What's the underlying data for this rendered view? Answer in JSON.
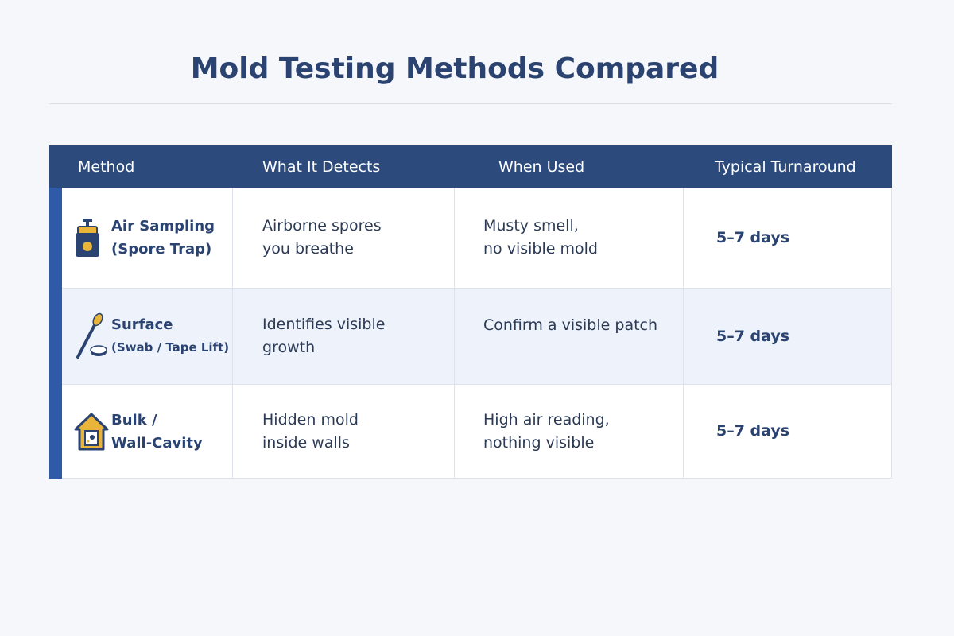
{
  "title": "Mold Testing Methods Compared",
  "table": {
    "header": [
      "Method",
      "What It Detects",
      "When Used",
      "Typical Turnaround"
    ],
    "rows": [
      [
        [
          "Air Sampling",
          "(Spore Trap)"
        ],
        [
          "Airborne spores",
          "you breathe"
        ],
        [
          "Musty smell,",
          "no visible mold"
        ],
        [
          "5–7 days"
        ]
      ],
      [
        [
          "Surface",
          "(Swab / Tape Lift)"
        ],
        [
          "Identifies visible",
          "growth"
        ],
        [
          "Confirm a visible patch"
        ],
        [
          "5–7 days"
        ]
      ],
      [
        [
          "Bulk /",
          "Wall-Cavity"
        ],
        [
          "Hidden mold",
          "inside walls"
        ],
        [
          "High air reading,",
          "nothing visible"
        ],
        [
          "5–7 days"
        ]
      ]
    ]
  }
}
